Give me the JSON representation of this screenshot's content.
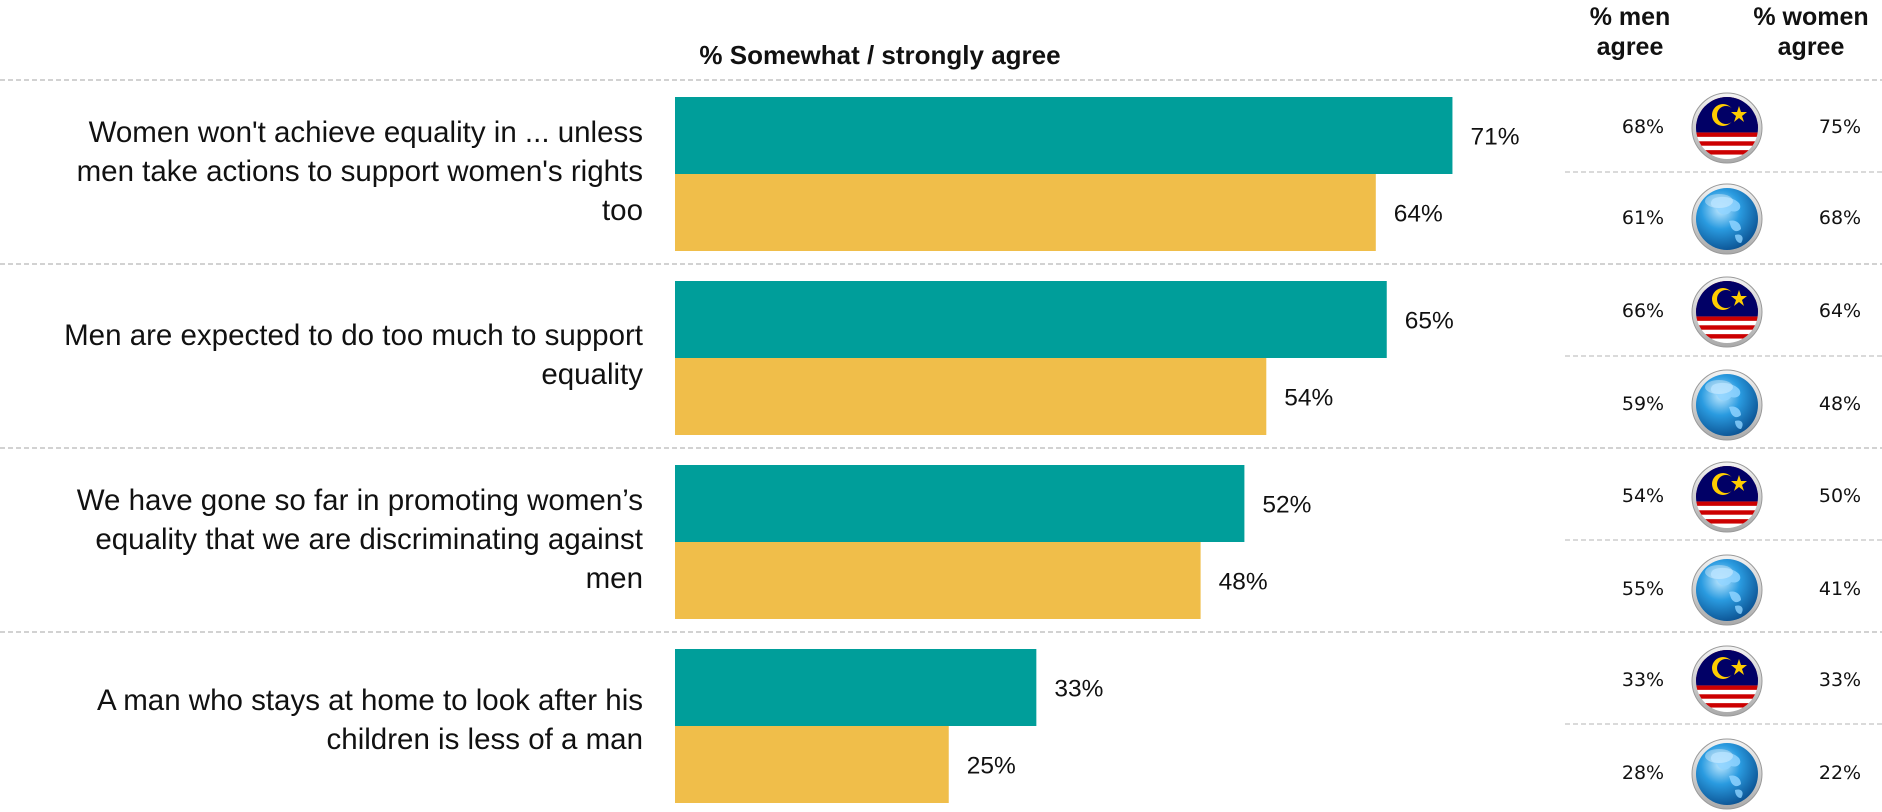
{
  "chart_data": {
    "type": "bar",
    "title": "% Somewhat  / strongly agree",
    "categories": [
      "Women won't achieve equality in ... unless men take actions to support women's rights too",
      "Men are expected to do too much to support equality",
      "We have gone so far in promoting women’s equality that we are discriminating against men",
      "A man who stays at home to look after his children is less of a man"
    ],
    "category_lines": [
      [
        "Women won't achieve equality in ... unless",
        "men take actions to support women's rights",
        "too"
      ],
      [
        "Men are expected to do too much to support",
        "equality"
      ],
      [
        "We have gone so far in promoting women’s",
        "equality that we are discriminating against",
        "men"
      ],
      [
        "A man who stays at home to look after his",
        "children is less of a man"
      ]
    ],
    "series": [
      {
        "color": "#009E9A",
        "values": [
          71,
          65,
          52,
          33
        ],
        "labels": [
          "71%",
          "65%",
          "52%",
          "33%"
        ]
      },
      {
        "color": "#F0BE4A",
        "values": [
          64,
          54,
          48,
          25
        ],
        "labels": [
          "64%",
          "54%",
          "48%",
          "25%"
        ]
      }
    ],
    "xlim": [
      0,
      100
    ],
    "orientation": "horizontal",
    "grid": false
  },
  "side_table": {
    "men_header": [
      "% men",
      "agree"
    ],
    "women_header": [
      "% women",
      "agree"
    ],
    "rows": [
      {
        "flag": "malaysia-flag-icon",
        "men": "68%",
        "women": "75%"
      },
      {
        "flag": "globe-icon",
        "men": "61%",
        "women": "68%"
      },
      {
        "flag": "malaysia-flag-icon",
        "men": "66%",
        "women": "64%"
      },
      {
        "flag": "globe-icon",
        "men": "59%",
        "women": "48%"
      },
      {
        "flag": "malaysia-flag-icon",
        "men": "54%",
        "women": "50%"
      },
      {
        "flag": "globe-icon",
        "men": "55%",
        "women": "41%"
      },
      {
        "flag": "malaysia-flag-icon",
        "men": "33%",
        "women": "33%"
      },
      {
        "flag": "globe-icon",
        "men": "28%",
        "women": "22%"
      }
    ]
  }
}
